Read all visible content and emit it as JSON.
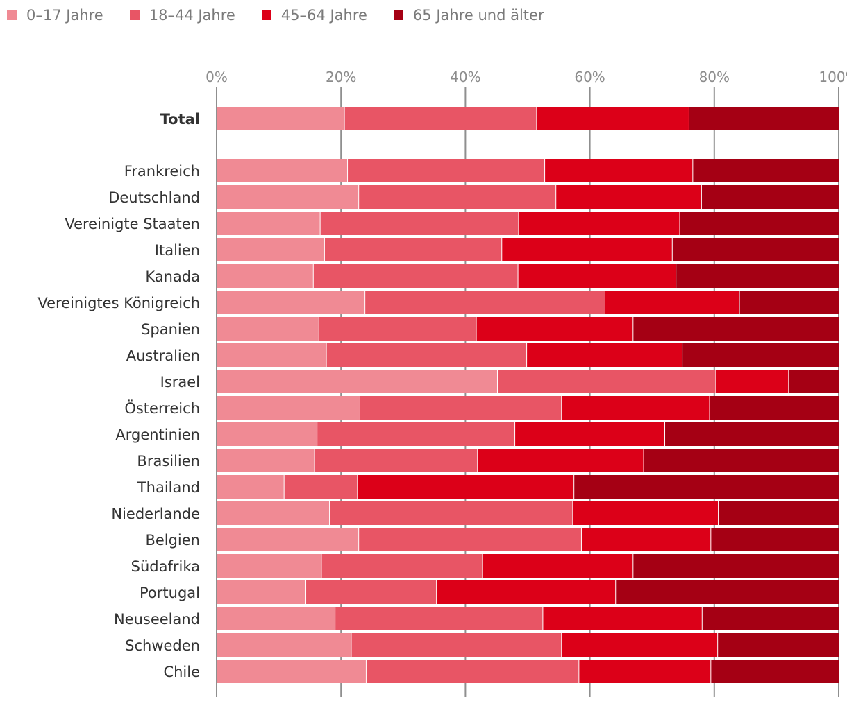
{
  "chart_data": {
    "type": "bar",
    "orientation": "horizontal",
    "stacked": true,
    "title": "",
    "xlabel": "",
    "ylabel": "",
    "xlim": [
      0,
      100
    ],
    "ticks": [
      "0%",
      "20%",
      "40%",
      "60%",
      "80%",
      "100%"
    ],
    "tick_values": [
      0,
      20,
      40,
      60,
      80,
      100
    ],
    "legend_position": "top-left",
    "grid": true,
    "categories": [
      "Total",
      "Frankreich",
      "Deutschland",
      "Vereinigte Staaten",
      "Italien",
      "Kanada",
      "Vereinigtes Königreich",
      "Spanien",
      "Australien",
      "Israel",
      "Österreich",
      "Argentinien",
      "Brasilien",
      "Thailand",
      "Niederlande",
      "Belgien",
      "Südafrika",
      "Portugal",
      "Neuseeland",
      "Schweden",
      "Chile"
    ],
    "series": [
      {
        "name": "0–17 Jahre",
        "color": "#f08a94",
        "values": [
          20.6,
          21.1,
          22.9,
          16.7,
          17.4,
          15.6,
          23.9,
          16.5,
          17.7,
          45.2,
          23.1,
          16.2,
          15.8,
          10.9,
          18.2,
          22.9,
          16.9,
          14.4,
          19.1,
          21.7,
          24.1
        ]
      },
      {
        "name": "18–44 Jahre",
        "color": "#e85565",
        "values": [
          30.9,
          31.7,
          31.7,
          31.9,
          28.5,
          32.9,
          38.6,
          25.3,
          32.2,
          35.1,
          32.4,
          31.8,
          26.2,
          11.8,
          39.1,
          35.8,
          25.9,
          21.0,
          33.4,
          33.8,
          34.2
        ]
      },
      {
        "name": "45–64 Jahre",
        "color": "#dc0018",
        "values": [
          24.5,
          23.8,
          23.4,
          25.9,
          27.4,
          25.4,
          21.6,
          25.2,
          25.0,
          11.7,
          23.8,
          24.1,
          26.7,
          34.8,
          23.4,
          20.8,
          24.2,
          28.8,
          25.6,
          25.1,
          21.2
        ]
      },
      {
        "name": "65 Jahre und älter",
        "color": "#a50014",
        "values": [
          24.0,
          23.4,
          22.0,
          25.5,
          26.7,
          26.1,
          15.9,
          33.0,
          25.1,
          8.0,
          20.7,
          27.9,
          31.3,
          42.5,
          19.3,
          20.5,
          33.0,
          35.8,
          21.9,
          19.4,
          20.5
        ]
      }
    ]
  }
}
